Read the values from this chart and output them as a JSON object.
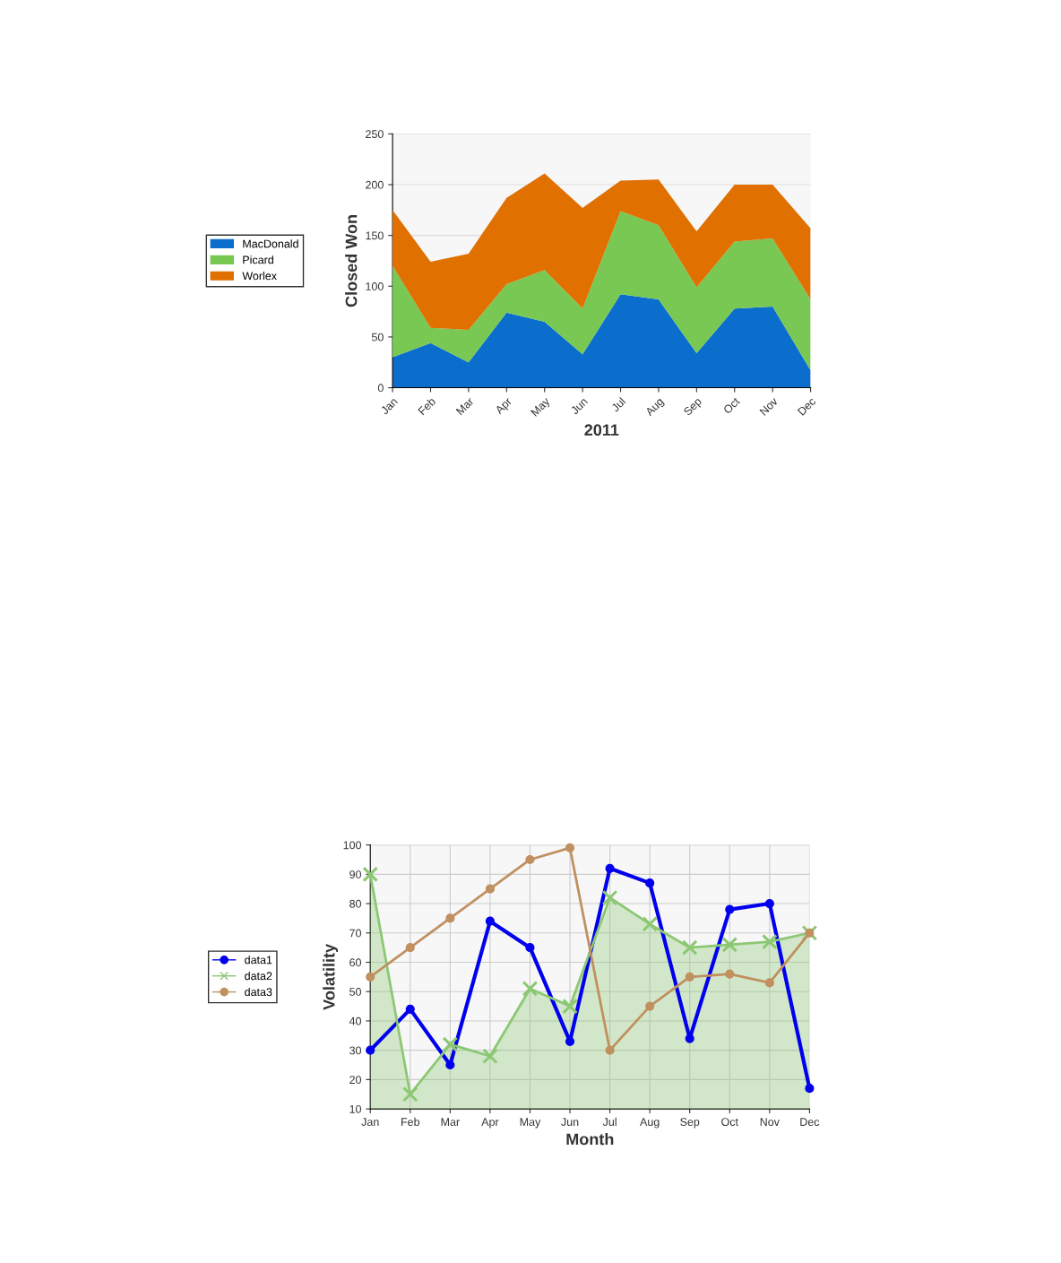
{
  "chart_data": [
    {
      "type": "area",
      "stacked": true,
      "xlabel": "2011",
      "ylabel": "Closed Won",
      "categories": [
        "Jan",
        "Feb",
        "Mar",
        "Apr",
        "May",
        "Jun",
        "Jul",
        "Aug",
        "Sep",
        "Oct",
        "Nov",
        "Dec"
      ],
      "series": [
        {
          "name": "MacDonald",
          "color": "#0b6ecd",
          "values": [
            30,
            44,
            25,
            74,
            65,
            33,
            92,
            87,
            34,
            78,
            80,
            17
          ]
        },
        {
          "name": "Picard",
          "color": "#78c853",
          "values": [
            90,
            15,
            32,
            28,
            51,
            45,
            82,
            73,
            65,
            66,
            67,
            70
          ]
        },
        {
          "name": "Worlex",
          "color": "#e07000",
          "values": [
            55,
            65,
            75,
            85,
            95,
            99,
            30,
            45,
            55,
            56,
            53,
            70
          ]
        }
      ],
      "ylim": [
        0,
        250
      ],
      "yticks": [
        0,
        50,
        100,
        150,
        200,
        250
      ],
      "grid": "y",
      "legend": "left"
    },
    {
      "type": "line",
      "xlabel": "Month",
      "ylabel": "Volatility",
      "categories": [
        "Jan",
        "Feb",
        "Mar",
        "Apr",
        "May",
        "Jun",
        "Jul",
        "Aug",
        "Sep",
        "Oct",
        "Nov",
        "Dec"
      ],
      "series": [
        {
          "name": "data1",
          "type": "line",
          "marker": "circle",
          "color": "#0000ee",
          "values": [
            30,
            44,
            25,
            74,
            65,
            33,
            92,
            87,
            34,
            78,
            80,
            17
          ]
        },
        {
          "name": "data2",
          "type": "area",
          "marker": "cross",
          "color": "#8cc874",
          "values": [
            90,
            15,
            32,
            28,
            51,
            45,
            82,
            73,
            65,
            66,
            67,
            70
          ]
        },
        {
          "name": "data3",
          "type": "line",
          "marker": "circle",
          "color": "#c09060",
          "values": [
            55,
            65,
            75,
            85,
            95,
            99,
            30,
            45,
            55,
            56,
            53,
            70
          ]
        }
      ],
      "ylim": [
        10,
        100
      ],
      "yticks": [
        10,
        20,
        30,
        40,
        50,
        60,
        70,
        80,
        90,
        100
      ],
      "grid": true,
      "legend": "left"
    }
  ]
}
